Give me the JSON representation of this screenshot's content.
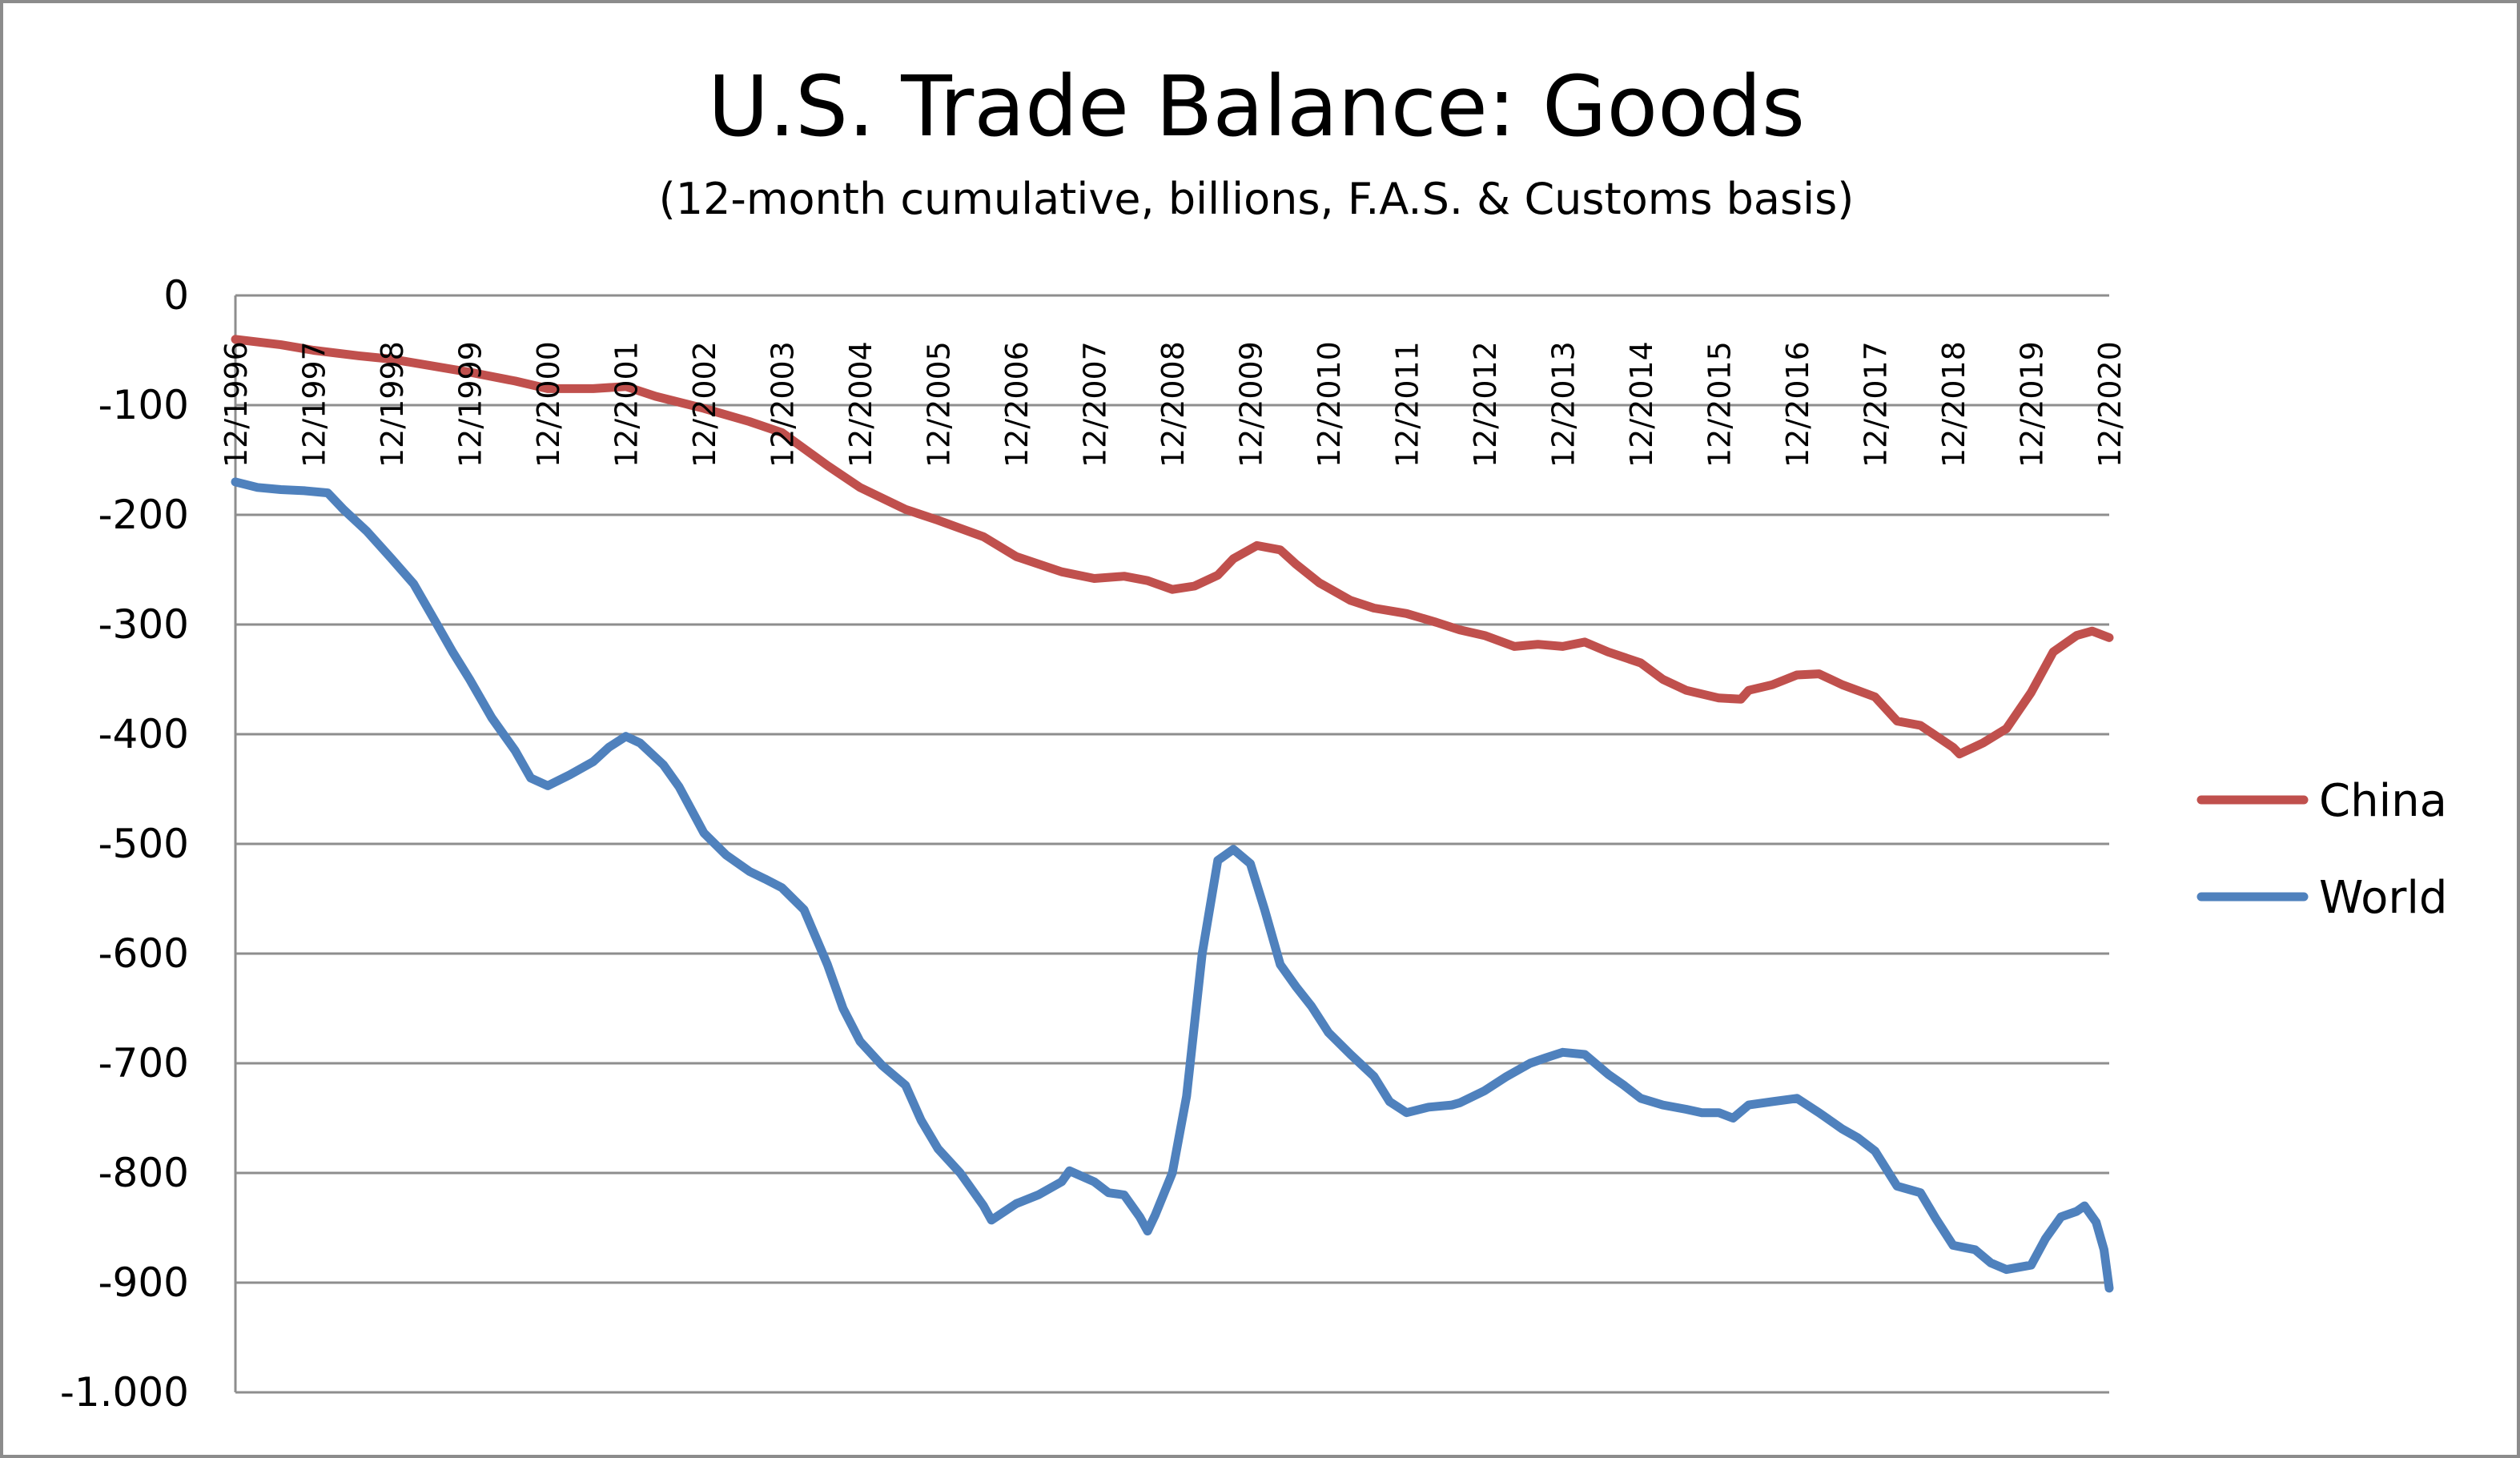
{
  "chart_data": {
    "type": "line",
    "title": "U.S. Trade Balance: Goods",
    "subtitle": "(12-month cumulative, billions, F.A.S. & Customs basis)",
    "ylim": [
      -1000,
      0
    ],
    "xlim": [
      1996.917,
      2020.917
    ],
    "grid": true,
    "legend_position": "right",
    "y_ticks": [
      {
        "value": 0,
        "label": "0"
      },
      {
        "value": -100,
        "label": "-100"
      },
      {
        "value": -200,
        "label": "-200"
      },
      {
        "value": -300,
        "label": "-300"
      },
      {
        "value": -400,
        "label": "-400"
      },
      {
        "value": -500,
        "label": "-500"
      },
      {
        "value": -600,
        "label": "-600"
      },
      {
        "value": -700,
        "label": "-700"
      },
      {
        "value": -800,
        "label": "-800"
      },
      {
        "value": -900,
        "label": "-900"
      },
      {
        "value": -1000,
        "label": "-1.000"
      }
    ],
    "x_ticks": [
      {
        "value": 1996.917,
        "label": "12/1996"
      },
      {
        "value": 1997.917,
        "label": "12/1997"
      },
      {
        "value": 1998.917,
        "label": "12/1998"
      },
      {
        "value": 1999.917,
        "label": "12/1999"
      },
      {
        "value": 2000.917,
        "label": "12/2000"
      },
      {
        "value": 2001.917,
        "label": "12/2001"
      },
      {
        "value": 2002.917,
        "label": "12/2002"
      },
      {
        "value": 2003.917,
        "label": "12/2003"
      },
      {
        "value": 2004.917,
        "label": "12/2004"
      },
      {
        "value": 2005.917,
        "label": "12/2005"
      },
      {
        "value": 2006.917,
        "label": "12/2006"
      },
      {
        "value": 2007.917,
        "label": "12/2007"
      },
      {
        "value": 2008.917,
        "label": "12/2008"
      },
      {
        "value": 2009.917,
        "label": "12/2009"
      },
      {
        "value": 2010.917,
        "label": "12/2010"
      },
      {
        "value": 2011.917,
        "label": "12/2011"
      },
      {
        "value": 2012.917,
        "label": "12/2012"
      },
      {
        "value": 2013.917,
        "label": "12/2013"
      },
      {
        "value": 2014.917,
        "label": "12/2014"
      },
      {
        "value": 2015.917,
        "label": "12/2015"
      },
      {
        "value": 2016.917,
        "label": "12/2016"
      },
      {
        "value": 2017.917,
        "label": "12/2017"
      },
      {
        "value": 2018.917,
        "label": "12/2018"
      },
      {
        "value": 2019.917,
        "label": "12/2019"
      },
      {
        "value": 2020.917,
        "label": "12/2020"
      }
    ],
    "series": [
      {
        "name": "China",
        "color": "#c0504d",
        "points": [
          [
            1996.917,
            -40
          ],
          [
            1997.5,
            -45
          ],
          [
            1997.917,
            -50
          ],
          [
            1998.5,
            -55
          ],
          [
            1998.917,
            -58
          ],
          [
            1999.5,
            -65
          ],
          [
            1999.917,
            -70
          ],
          [
            2000.5,
            -78
          ],
          [
            2000.917,
            -85
          ],
          [
            2001.5,
            -85
          ],
          [
            2001.917,
            -83
          ],
          [
            2002.3,
            -92
          ],
          [
            2002.917,
            -103
          ],
          [
            2003.5,
            -115
          ],
          [
            2003.917,
            -125
          ],
          [
            2004.5,
            -155
          ],
          [
            2004.917,
            -175
          ],
          [
            2005.5,
            -195
          ],
          [
            2005.917,
            -205
          ],
          [
            2006.5,
            -220
          ],
          [
            2006.917,
            -238
          ],
          [
            2007.5,
            -252
          ],
          [
            2007.917,
            -258
          ],
          [
            2008.3,
            -256
          ],
          [
            2008.6,
            -260
          ],
          [
            2008.917,
            -268
          ],
          [
            2009.2,
            -265
          ],
          [
            2009.5,
            -255
          ],
          [
            2009.7,
            -240
          ],
          [
            2010.0,
            -228
          ],
          [
            2010.3,
            -232
          ],
          [
            2010.5,
            -245
          ],
          [
            2010.8,
            -262
          ],
          [
            2011.2,
            -278
          ],
          [
            2011.5,
            -285
          ],
          [
            2011.917,
            -290
          ],
          [
            2012.3,
            -298
          ],
          [
            2012.6,
            -305
          ],
          [
            2012.917,
            -310
          ],
          [
            2013.3,
            -320
          ],
          [
            2013.6,
            -318
          ],
          [
            2013.917,
            -320
          ],
          [
            2014.2,
            -316
          ],
          [
            2014.5,
            -325
          ],
          [
            2014.917,
            -335
          ],
          [
            2015.2,
            -350
          ],
          [
            2015.5,
            -360
          ],
          [
            2015.917,
            -367
          ],
          [
            2016.2,
            -368
          ],
          [
            2016.3,
            -360
          ],
          [
            2016.6,
            -355
          ],
          [
            2016.917,
            -346
          ],
          [
            2017.2,
            -345
          ],
          [
            2017.5,
            -355
          ],
          [
            2017.917,
            -366
          ],
          [
            2018.2,
            -388
          ],
          [
            2018.5,
            -392
          ],
          [
            2018.917,
            -412
          ],
          [
            2019.0,
            -418
          ],
          [
            2019.3,
            -408
          ],
          [
            2019.6,
            -395
          ],
          [
            2019.917,
            -362
          ],
          [
            2020.2,
            -325
          ],
          [
            2020.5,
            -310
          ],
          [
            2020.7,
            -306
          ],
          [
            2020.917,
            -312
          ]
        ]
      },
      {
        "name": "World",
        "color": "#4f81bd",
        "points": [
          [
            1996.917,
            -170
          ],
          [
            1997.2,
            -175
          ],
          [
            1997.5,
            -177
          ],
          [
            1997.8,
            -178
          ],
          [
            1998.1,
            -180
          ],
          [
            1998.3,
            -195
          ],
          [
            1998.6,
            -215
          ],
          [
            1998.917,
            -240
          ],
          [
            1999.2,
            -263
          ],
          [
            1999.5,
            -300
          ],
          [
            1999.7,
            -325
          ],
          [
            1999.917,
            -350
          ],
          [
            2000.2,
            -385
          ],
          [
            2000.5,
            -415
          ],
          [
            2000.7,
            -440
          ],
          [
            2000.917,
            -447
          ],
          [
            2001.2,
            -437
          ],
          [
            2001.5,
            -425
          ],
          [
            2001.7,
            -412
          ],
          [
            2001.917,
            -402
          ],
          [
            2002.1,
            -408
          ],
          [
            2002.4,
            -428
          ],
          [
            2002.6,
            -448
          ],
          [
            2002.917,
            -490
          ],
          [
            2003.2,
            -510
          ],
          [
            2003.5,
            -525
          ],
          [
            2003.7,
            -532
          ],
          [
            2003.917,
            -540
          ],
          [
            2004.2,
            -560
          ],
          [
            2004.5,
            -610
          ],
          [
            2004.7,
            -650
          ],
          [
            2004.917,
            -680
          ],
          [
            2005.2,
            -702
          ],
          [
            2005.5,
            -720
          ],
          [
            2005.7,
            -752
          ],
          [
            2005.917,
            -778
          ],
          [
            2006.2,
            -800
          ],
          [
            2006.5,
            -830
          ],
          [
            2006.6,
            -843
          ],
          [
            2006.917,
            -828
          ],
          [
            2007.2,
            -820
          ],
          [
            2007.5,
            -808
          ],
          [
            2007.6,
            -798
          ],
          [
            2007.917,
            -808
          ],
          [
            2008.1,
            -818
          ],
          [
            2008.3,
            -820
          ],
          [
            2008.5,
            -840
          ],
          [
            2008.6,
            -853
          ],
          [
            2008.7,
            -838
          ],
          [
            2008.917,
            -800
          ],
          [
            2009.1,
            -730
          ],
          [
            2009.3,
            -600
          ],
          [
            2009.5,
            -515
          ],
          [
            2009.7,
            -505
          ],
          [
            2009.917,
            -518
          ],
          [
            2010.1,
            -560
          ],
          [
            2010.3,
            -610
          ],
          [
            2010.5,
            -630
          ],
          [
            2010.7,
            -648
          ],
          [
            2010.917,
            -672
          ],
          [
            2011.2,
            -692
          ],
          [
            2011.5,
            -712
          ],
          [
            2011.7,
            -735
          ],
          [
            2011.917,
            -745
          ],
          [
            2012.2,
            -740
          ],
          [
            2012.5,
            -738
          ],
          [
            2012.6,
            -736
          ],
          [
            2012.917,
            -725
          ],
          [
            2013.2,
            -712
          ],
          [
            2013.5,
            -700
          ],
          [
            2013.7,
            -695
          ],
          [
            2013.917,
            -690
          ],
          [
            2014.2,
            -692
          ],
          [
            2014.5,
            -710
          ],
          [
            2014.7,
            -720
          ],
          [
            2014.917,
            -732
          ],
          [
            2015.2,
            -738
          ],
          [
            2015.5,
            -742
          ],
          [
            2015.7,
            -745
          ],
          [
            2015.917,
            -745
          ],
          [
            2016.1,
            -750
          ],
          [
            2016.3,
            -738
          ],
          [
            2016.6,
            -735
          ],
          [
            2016.917,
            -732
          ],
          [
            2017.2,
            -745
          ],
          [
            2017.5,
            -760
          ],
          [
            2017.7,
            -768
          ],
          [
            2017.917,
            -780
          ],
          [
            2018.2,
            -812
          ],
          [
            2018.5,
            -818
          ],
          [
            2018.7,
            -842
          ],
          [
            2018.917,
            -866
          ],
          [
            2019.2,
            -870
          ],
          [
            2019.4,
            -882
          ],
          [
            2019.6,
            -888
          ],
          [
            2019.917,
            -884
          ],
          [
            2020.1,
            -860
          ],
          [
            2020.3,
            -840
          ],
          [
            2020.5,
            -835
          ],
          [
            2020.6,
            -830
          ],
          [
            2020.75,
            -845
          ],
          [
            2020.85,
            -870
          ],
          [
            2020.917,
            -905
          ]
        ]
      }
    ]
  }
}
